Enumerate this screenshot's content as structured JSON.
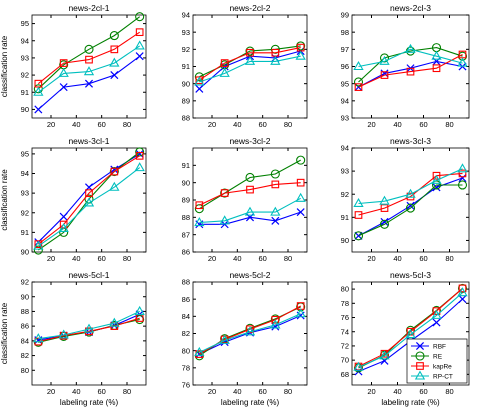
{
  "ylabel": "classification rate",
  "xlabel": "labeling rate (%)",
  "x": [
    10,
    30,
    50,
    70,
    90
  ],
  "xticks": [
    20,
    40,
    60,
    80
  ],
  "xlim": [
    5,
    95
  ],
  "legend": {
    "placement": "bottom-right",
    "entries": [
      {
        "name": "RBF",
        "color": "#0000ff",
        "marker": "x"
      },
      {
        "name": "RE",
        "color": "#008000",
        "marker": "o"
      },
      {
        "name": "kapRe",
        "color": "#ff0000",
        "marker": "s"
      },
      {
        "name": "RP-CT",
        "color": "#00bfbf",
        "marker": "^"
      }
    ]
  },
  "chart_data": [
    {
      "type": "line",
      "title": "news-2cl-1",
      "ylim": [
        89.5,
        95.5
      ],
      "yticks": [
        90,
        91,
        92,
        93,
        94,
        95
      ],
      "ylabel": "classification rate",
      "xlabel": "",
      "series": [
        {
          "name": "RBF",
          "values": [
            90.0,
            91.3,
            91.5,
            92.0,
            93.1
          ]
        },
        {
          "name": "RE",
          "values": [
            91.2,
            92.6,
            93.5,
            94.3,
            95.4
          ]
        },
        {
          "name": "kapRe",
          "values": [
            91.5,
            92.7,
            92.9,
            93.5,
            94.5
          ]
        },
        {
          "name": "RP-CT",
          "values": [
            91.0,
            92.1,
            92.2,
            92.7,
            93.7
          ]
        }
      ]
    },
    {
      "type": "line",
      "title": "news-2cl-2",
      "ylim": [
        88,
        94
      ],
      "yticks": [
        88,
        89,
        90,
        91,
        92,
        93,
        94
      ],
      "ylabel": "",
      "xlabel": "",
      "series": [
        {
          "name": "RBF",
          "values": [
            89.7,
            91.0,
            91.6,
            91.5,
            91.9
          ]
        },
        {
          "name": "RE",
          "values": [
            90.4,
            91.1,
            91.9,
            92.0,
            92.2
          ]
        },
        {
          "name": "kapRe",
          "values": [
            90.2,
            91.2,
            91.8,
            91.8,
            92.1
          ]
        },
        {
          "name": "RP-CT",
          "values": [
            90.1,
            90.6,
            91.3,
            91.3,
            91.6
          ]
        }
      ]
    },
    {
      "type": "line",
      "title": "news-2cl-3",
      "ylim": [
        93,
        99
      ],
      "yticks": [
        93,
        94,
        95,
        96,
        97,
        98,
        99
      ],
      "ylabel": "",
      "xlabel": "",
      "series": [
        {
          "name": "RBF",
          "values": [
            94.8,
            95.6,
            95.9,
            96.3,
            96.0
          ]
        },
        {
          "name": "RE",
          "values": [
            95.1,
            96.5,
            96.9,
            97.1,
            96.6
          ]
        },
        {
          "name": "kapRe",
          "values": [
            94.8,
            95.5,
            95.7,
            95.9,
            96.7
          ]
        },
        {
          "name": "RP-CT",
          "values": [
            96.0,
            96.3,
            97.0,
            96.6,
            96.2
          ]
        }
      ]
    },
    {
      "type": "line",
      "title": "news-3cl-1",
      "ylim": [
        90,
        95.3
      ],
      "yticks": [
        90,
        91,
        92,
        93,
        94,
        95
      ],
      "ylabel": "classification rate",
      "xlabel": "",
      "series": [
        {
          "name": "RBF",
          "values": [
            90.5,
            91.8,
            93.3,
            94.2,
            95.0
          ]
        },
        {
          "name": "RE",
          "values": [
            90.1,
            91.0,
            92.7,
            94.1,
            95.1
          ]
        },
        {
          "name": "kapRe",
          "values": [
            90.4,
            91.4,
            93.0,
            94.1,
            94.9
          ]
        },
        {
          "name": "RP-CT",
          "values": [
            90.3,
            91.2,
            92.5,
            93.3,
            94.3
          ]
        }
      ]
    },
    {
      "type": "line",
      "title": "news-3cl-2",
      "ylim": [
        86,
        92
      ],
      "yticks": [
        86,
        87,
        88,
        89,
        90,
        91
      ],
      "ylabel": "",
      "xlabel": "",
      "series": [
        {
          "name": "RBF",
          "values": [
            87.6,
            87.6,
            88.0,
            87.8,
            88.3
          ]
        },
        {
          "name": "RE",
          "values": [
            88.5,
            89.4,
            90.3,
            90.5,
            91.3
          ]
        },
        {
          "name": "kapRe",
          "values": [
            88.7,
            89.4,
            89.6,
            89.9,
            90.0
          ]
        },
        {
          "name": "RP-CT",
          "values": [
            87.7,
            87.8,
            88.3,
            88.3,
            89.1
          ]
        }
      ]
    },
    {
      "type": "line",
      "title": "news-3cl-3",
      "ylim": [
        89.5,
        94
      ],
      "yticks": [
        90,
        91,
        92,
        93,
        94
      ],
      "ylabel": "",
      "xlabel": "",
      "series": [
        {
          "name": "RBF",
          "values": [
            90.2,
            90.8,
            91.5,
            92.3,
            92.7
          ]
        },
        {
          "name": "RE",
          "values": [
            90.2,
            90.7,
            91.4,
            92.4,
            92.4
          ]
        },
        {
          "name": "kapRe",
          "values": [
            91.1,
            91.4,
            91.9,
            92.8,
            92.9
          ]
        },
        {
          "name": "RP-CT",
          "values": [
            91.6,
            91.7,
            92.0,
            92.6,
            93.1
          ]
        }
      ]
    },
    {
      "type": "line",
      "title": "news-5cl-1",
      "ylim": [
        78,
        92
      ],
      "yticks": [
        80,
        82,
        84,
        86,
        88,
        90,
        92
      ],
      "ylabel": "classification rate",
      "xlabel": "labeling rate (%)",
      "series": [
        {
          "name": "RBF",
          "values": [
            84.1,
            84.7,
            85.2,
            86.1,
            87.6
          ]
        },
        {
          "name": "RE",
          "values": [
            83.8,
            84.6,
            85.2,
            86.1,
            86.9
          ]
        },
        {
          "name": "kapRe",
          "values": [
            83.9,
            84.7,
            85.3,
            86.0,
            87.1
          ]
        },
        {
          "name": "RP-CT",
          "values": [
            84.3,
            84.8,
            85.6,
            86.4,
            88.0
          ]
        }
      ]
    },
    {
      "type": "line",
      "title": "news-5cl-2",
      "ylim": [
        76,
        88
      ],
      "yticks": [
        76,
        78,
        80,
        82,
        84,
        86,
        88
      ],
      "ylabel": "",
      "xlabel": "labeling rate (%)",
      "series": [
        {
          "name": "RBF",
          "values": [
            79.6,
            81.0,
            82.1,
            82.8,
            84.1
          ]
        },
        {
          "name": "RE",
          "values": [
            79.4,
            81.4,
            82.6,
            83.7,
            85.1
          ]
        },
        {
          "name": "kapRe",
          "values": [
            79.6,
            81.3,
            82.5,
            83.6,
            85.2
          ]
        },
        {
          "name": "RP-CT",
          "values": [
            79.8,
            81.2,
            82.2,
            83.0,
            84.3
          ]
        }
      ]
    },
    {
      "type": "line",
      "title": "news-5cl-3",
      "ylim": [
        66.5,
        81
      ],
      "yticks": [
        68,
        70,
        72,
        74,
        76,
        78,
        80
      ],
      "ylabel": "",
      "xlabel": "labeling rate (%)",
      "series": [
        {
          "name": "RBF",
          "values": [
            68.4,
            69.9,
            72.7,
            75.3,
            78.6
          ]
        },
        {
          "name": "RE",
          "values": [
            68.9,
            70.7,
            74.2,
            77.0,
            80.1
          ]
        },
        {
          "name": "kapRe",
          "values": [
            69.1,
            70.9,
            74.0,
            76.9,
            80.1
          ]
        },
        {
          "name": "RP-CT",
          "values": [
            69.0,
            70.6,
            73.6,
            76.3,
            79.5
          ]
        }
      ]
    }
  ]
}
